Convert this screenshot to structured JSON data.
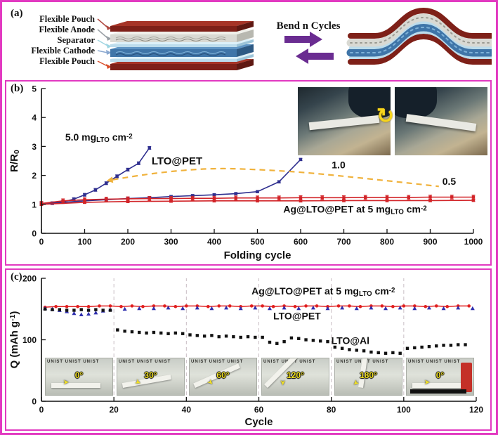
{
  "figure": {
    "border_color": "#e23ac1",
    "background": "#ffffff"
  },
  "icons": {
    "rotate_arrow": "↻",
    "angle_arrow": "➤"
  },
  "panel_a": {
    "tag": "(a)",
    "bend_label": "Bend n Cycles",
    "layers": [
      {
        "label": "Flexible Pouch",
        "color": "#d94f2b"
      },
      {
        "label": "Flexible Anode",
        "color": "#9e3b33"
      },
      {
        "label": "Separator",
        "color": "#8fcfe0"
      },
      {
        "label": "Flexible Cathode",
        "color": "#4472c4"
      },
      {
        "label": "Flexible Pouch",
        "color": "#e03c28"
      }
    ]
  },
  "panel_b": {
    "tag": "(b)"
  },
  "panel_c": {
    "tag": "(c)",
    "inset_watermark": "UNIST UNIST UNIST",
    "insets": [
      {
        "angle": "0°"
      },
      {
        "angle": "30°"
      },
      {
        "angle": "60°"
      },
      {
        "angle": "120°"
      },
      {
        "angle": "180°"
      },
      {
        "angle": "0°"
      }
    ]
  },
  "chart_data": [
    {
      "type": "line",
      "xlabel": [
        {
          "t": "Folding cycle"
        }
      ],
      "ylabel": [
        {
          "t": "R/R"
        },
        {
          "t": "0",
          "sub": true
        }
      ],
      "xlim": [
        0,
        1000
      ],
      "ylim": [
        0,
        5
      ],
      "xticks": [
        0,
        100,
        200,
        300,
        400,
        500,
        600,
        700,
        800,
        900,
        1000
      ],
      "yticks": [
        0,
        1,
        2,
        3,
        4,
        5
      ],
      "series": [
        {
          "name": "LTO@PET 5.0 mgLTO cm-2",
          "color": "#2f2f8f",
          "marker": "square",
          "line": true,
          "err": 0.05,
          "points": [
            [
              0,
              1.02
            ],
            [
              25,
              1.04
            ],
            [
              50,
              1.09
            ],
            [
              75,
              1.18
            ],
            [
              100,
              1.33
            ],
            [
              125,
              1.5
            ],
            [
              150,
              1.73
            ],
            [
              175,
              1.97
            ],
            [
              200,
              2.2
            ],
            [
              225,
              2.42
            ],
            [
              250,
              2.95
            ]
          ]
        },
        {
          "name": "LTO@PET 1.0 mgLTO cm-2",
          "color": "#2f2f8f",
          "marker": "square",
          "line": true,
          "err": 0.04,
          "points": [
            [
              0,
              1.0
            ],
            [
              50,
              1.07
            ],
            [
              100,
              1.12
            ],
            [
              150,
              1.16
            ],
            [
              200,
              1.2
            ],
            [
              250,
              1.23
            ],
            [
              300,
              1.27
            ],
            [
              350,
              1.3
            ],
            [
              400,
              1.33
            ],
            [
              450,
              1.37
            ],
            [
              500,
              1.44
            ],
            [
              550,
              1.78
            ],
            [
              600,
              2.55
            ]
          ]
        },
        {
          "name": "Ag@LTO@PET 5 mgLTO cm-2 upper",
          "color": "#d22428",
          "marker": "square",
          "line": true,
          "err": 0.07,
          "points": [
            [
              0,
              1.03
            ],
            [
              50,
              1.12
            ],
            [
              100,
              1.16
            ],
            [
              150,
              1.18
            ],
            [
              200,
              1.19
            ],
            [
              250,
              1.2
            ],
            [
              300,
              1.2
            ],
            [
              350,
              1.21
            ],
            [
              400,
              1.21
            ],
            [
              450,
              1.22
            ],
            [
              500,
              1.22
            ],
            [
              550,
              1.22
            ],
            [
              600,
              1.23
            ],
            [
              650,
              1.23
            ],
            [
              700,
              1.23
            ],
            [
              750,
              1.24
            ],
            [
              800,
              1.24
            ],
            [
              850,
              1.24
            ],
            [
              900,
              1.25
            ],
            [
              950,
              1.25
            ],
            [
              1000,
              1.25
            ]
          ]
        },
        {
          "name": "Ag@LTO@PET 5 mgLTO cm-2 lower",
          "color": "#d22428",
          "marker": "square",
          "line": true,
          "err": 0.04,
          "points": [
            [
              0,
              1.0
            ],
            [
              100,
              1.07
            ],
            [
              200,
              1.1
            ],
            [
              300,
              1.11
            ],
            [
              400,
              1.12
            ],
            [
              500,
              1.12
            ],
            [
              600,
              1.12
            ],
            [
              700,
              1.13
            ],
            [
              800,
              1.13
            ],
            [
              900,
              1.13
            ],
            [
              1000,
              1.14
            ]
          ]
        }
      ],
      "dashed_arrow": {
        "color": "#f0b23c",
        "points": [
          [
            165,
            1.85
          ],
          [
            330,
            2.28
          ],
          [
            560,
            2.18
          ],
          [
            780,
            1.85
          ],
          [
            920,
            1.62
          ]
        ]
      },
      "annotations": [
        {
          "segs": [
            {
              "t": "5.0 mg"
            },
            {
              "t": "LTO",
              "sub": true
            },
            {
              "t": " cm"
            },
            {
              "t": "-2",
              "sup": true
            }
          ],
          "x": 55,
          "y": 3.2,
          "color": "#2f2f8f",
          "size": 14,
          "weight": "bold",
          "anchor": "start"
        },
        {
          "segs": [
            {
              "t": "LTO@PET"
            }
          ],
          "x": 255,
          "y": 2.38,
          "color": "#141414",
          "size": 15,
          "weight": "bold",
          "anchor": "start"
        },
        {
          "segs": [
            {
              "t": "1.0"
            }
          ],
          "x": 672,
          "y": 2.25,
          "color": "#2f2f8f",
          "size": 14,
          "weight": "bold",
          "anchor": "start"
        },
        {
          "segs": [
            {
              "t": "0.5"
            }
          ],
          "x": 928,
          "y": 1.68,
          "color": "#5b2b86",
          "size": 14,
          "weight": "bold",
          "anchor": "start"
        },
        {
          "segs": [
            {
              "t": "Ag@LTO@PET at 5 mg"
            },
            {
              "t": "LTO",
              "sub": true
            },
            {
              "t": " cm"
            },
            {
              "t": "-2",
              "sup": true
            }
          ],
          "x": 560,
          "y": 0.72,
          "color": "#d22428",
          "size": 14,
          "weight": "bold",
          "anchor": "start"
        }
      ]
    },
    {
      "type": "line",
      "xlabel": [
        {
          "t": "Cycle"
        }
      ],
      "ylabel": [
        {
          "t": "Q (mAh g"
        },
        {
          "t": "-1",
          "sup": true
        },
        {
          "t": ")"
        }
      ],
      "xlim": [
        0,
        120
      ],
      "ylim": [
        0,
        200
      ],
      "xticks": [
        0,
        20,
        40,
        60,
        80,
        100,
        120
      ],
      "yticks": [
        0,
        100,
        200
      ],
      "vlines": [
        20,
        40,
        60,
        80,
        100
      ],
      "series": [
        {
          "name": "Ag@LTO@PET at 5 mgLTO cm-2",
          "color": "#e01f1f",
          "marker": "circle",
          "line": true,
          "points": [
            [
              1,
              153
            ],
            [
              4,
              154
            ],
            [
              7,
              154
            ],
            [
              10,
              154
            ],
            [
              13,
              154
            ],
            [
              16,
              155
            ],
            [
              19,
              155
            ],
            [
              22,
              154
            ],
            [
              25,
              155
            ],
            [
              28,
              154
            ],
            [
              31,
              155
            ],
            [
              34,
              155
            ],
            [
              37,
              154
            ],
            [
              40,
              155
            ],
            [
              43,
              155
            ],
            [
              46,
              154
            ],
            [
              49,
              155
            ],
            [
              52,
              155
            ],
            [
              55,
              154
            ],
            [
              58,
              155
            ],
            [
              61,
              155
            ],
            [
              64,
              154
            ],
            [
              67,
              155
            ],
            [
              70,
              154
            ],
            [
              73,
              155
            ],
            [
              76,
              155
            ],
            [
              79,
              154
            ],
            [
              82,
              155
            ],
            [
              85,
              155
            ],
            [
              88,
              154
            ],
            [
              91,
              155
            ],
            [
              94,
              155
            ],
            [
              97,
              154
            ],
            [
              100,
              155
            ],
            [
              103,
              155
            ],
            [
              106,
              154
            ],
            [
              109,
              155
            ],
            [
              112,
              154
            ],
            [
              115,
              155
            ],
            [
              118,
              155
            ]
          ]
        },
        {
          "name": "LTO@Al",
          "color": "#2f2fae",
          "marker": "triangle",
          "line": false,
          "points": [
            [
              1,
              151
            ],
            [
              3,
              150
            ],
            [
              5,
              148
            ],
            [
              7,
              146
            ],
            [
              9,
              143
            ],
            [
              11,
              141
            ],
            [
              13,
              142
            ],
            [
              15,
              144
            ],
            [
              17,
              147
            ],
            [
              19,
              149
            ],
            [
              23,
              150
            ],
            [
              27,
              151
            ],
            [
              31,
              151
            ],
            [
              35,
              152
            ],
            [
              39,
              151
            ],
            [
              43,
              152
            ],
            [
              47,
              151
            ],
            [
              51,
              152
            ],
            [
              55,
              151
            ],
            [
              59,
              152
            ],
            [
              63,
              151
            ],
            [
              67,
              152
            ],
            [
              71,
              151
            ],
            [
              75,
              152
            ],
            [
              79,
              151
            ],
            [
              83,
              152
            ],
            [
              87,
              151
            ],
            [
              91,
              152
            ],
            [
              95,
              151
            ],
            [
              99,
              152
            ],
            [
              103,
              151
            ],
            [
              107,
              152
            ],
            [
              111,
              151
            ],
            [
              115,
              152
            ],
            [
              119,
              151
            ]
          ]
        },
        {
          "name": "LTO@PET",
          "color": "#121212",
          "marker": "square",
          "line": false,
          "points": [
            [
              1,
              150
            ],
            [
              3,
              149
            ],
            [
              5,
              149
            ],
            [
              7,
              148
            ],
            [
              9,
              148
            ],
            [
              11,
              149
            ],
            [
              13,
              148
            ],
            [
              15,
              149
            ],
            [
              17,
              148
            ],
            [
              19,
              148
            ],
            [
              21,
              116
            ],
            [
              23,
              114
            ],
            [
              25,
              113
            ],
            [
              27,
              112
            ],
            [
              29,
              111
            ],
            [
              31,
              112
            ],
            [
              33,
              111
            ],
            [
              35,
              110
            ],
            [
              37,
              111
            ],
            [
              39,
              110
            ],
            [
              41,
              108
            ],
            [
              43,
              107
            ],
            [
              45,
              106
            ],
            [
              47,
              107
            ],
            [
              49,
              105
            ],
            [
              51,
              106
            ],
            [
              53,
              105
            ],
            [
              55,
              104
            ],
            [
              57,
              105
            ],
            [
              59,
              104
            ],
            [
              61,
              104
            ],
            [
              63,
              96
            ],
            [
              65,
              94
            ],
            [
              67,
              97
            ],
            [
              69,
              103
            ],
            [
              71,
              102
            ],
            [
              73,
              100
            ],
            [
              75,
              99
            ],
            [
              77,
              98
            ],
            [
              79,
              97
            ],
            [
              81,
              88
            ],
            [
              83,
              86
            ],
            [
              85,
              84
            ],
            [
              87,
              83
            ],
            [
              89,
              82
            ],
            [
              91,
              80
            ],
            [
              93,
              79
            ],
            [
              95,
              78
            ],
            [
              97,
              79
            ],
            [
              99,
              78
            ],
            [
              101,
              86
            ],
            [
              103,
              87
            ],
            [
              105,
              88
            ],
            [
              107,
              89
            ],
            [
              109,
              90
            ],
            [
              111,
              91
            ],
            [
              113,
              91
            ],
            [
              115,
              92
            ],
            [
              117,
              92
            ]
          ]
        }
      ],
      "annotations": [
        {
          "segs": [
            {
              "t": "Ag@LTO@PET at 5 mg"
            },
            {
              "t": "LTO",
              "sub": true
            },
            {
              "t": " cm"
            },
            {
              "t": "-2",
              "sup": true
            }
          ],
          "x": 58,
          "y": 174,
          "color": "#e01f1f",
          "size": 14,
          "weight": "bold",
          "anchor": "start"
        },
        {
          "segs": [
            {
              "t": "LTO@PET"
            }
          ],
          "x": 64,
          "y": 133,
          "color": "#121212",
          "size": 14,
          "weight": "bold",
          "anchor": "start"
        },
        {
          "segs": [
            {
              "t": "LTO@Al"
            }
          ],
          "x": 80,
          "y": 93,
          "color": "#121212",
          "size": 14,
          "weight": "bold",
          "anchor": "start"
        }
      ]
    }
  ]
}
